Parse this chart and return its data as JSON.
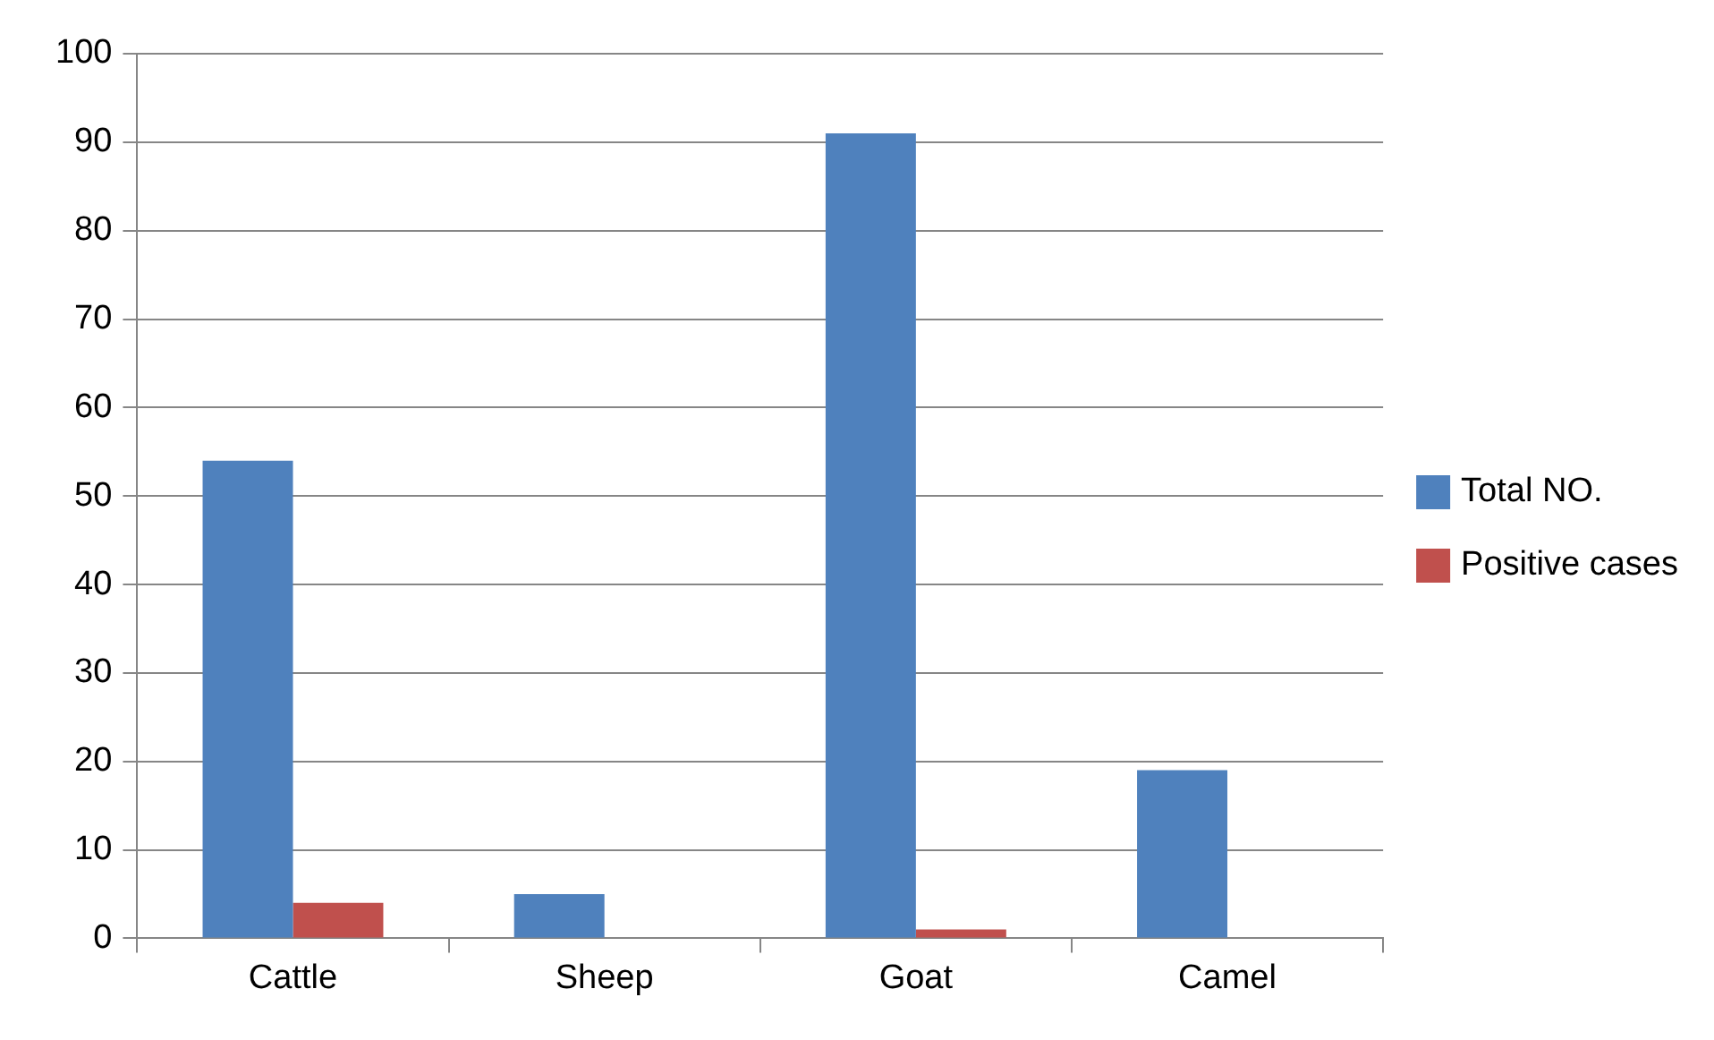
{
  "chart_data": {
    "type": "bar",
    "categories": [
      "Cattle",
      "Sheep",
      "Goat",
      "Camel"
    ],
    "series": [
      {
        "name": "Total NO.",
        "color": "#4f81bd",
        "values": [
          54,
          5,
          91,
          19
        ]
      },
      {
        "name": "Positive cases",
        "color": "#c0504d",
        "values": [
          4,
          0,
          1,
          0
        ]
      }
    ],
    "ylim": [
      0,
      100
    ],
    "yticks": [
      0,
      10,
      20,
      30,
      40,
      50,
      60,
      70,
      80,
      90,
      100
    ],
    "grid": "y",
    "legend": "right"
  }
}
